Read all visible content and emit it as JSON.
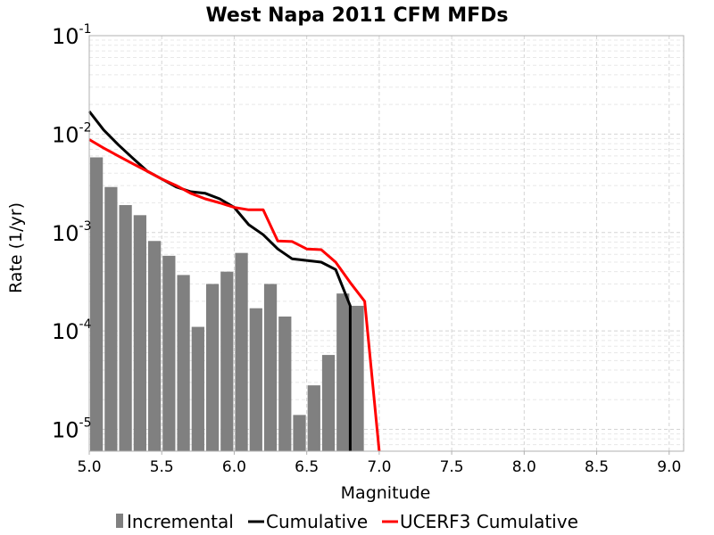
{
  "chart_data": {
    "type": "bar",
    "title": "West Napa 2011 CFM MFDs",
    "xlabel": "Magnitude",
    "ylabel": "Rate (1/yr)",
    "xlim": [
      5.0,
      9.1
    ],
    "ylim": [
      6e-06,
      0.1
    ],
    "yscale": "log",
    "grid": true,
    "legend_position": "bottom",
    "x_ticks": [
      "5.0",
      "5.5",
      "6.0",
      "6.5",
      "7.0",
      "7.5",
      "8.0",
      "8.5",
      "9.0"
    ],
    "y_ticks": [
      {
        "base": "10",
        "exp": "-1"
      },
      {
        "base": "10",
        "exp": "-2"
      },
      {
        "base": "10",
        "exp": "-3"
      },
      {
        "base": "10",
        "exp": "-4"
      },
      {
        "base": "10",
        "exp": "-5"
      }
    ],
    "series": [
      {
        "name": "Incremental",
        "kind": "bar",
        "color": "#808080",
        "bin_width": 0.1,
        "x": [
          5.05,
          5.15,
          5.25,
          5.35,
          5.45,
          5.55,
          5.65,
          5.75,
          5.85,
          5.95,
          6.05,
          6.15,
          6.25,
          6.35,
          6.45,
          6.55,
          6.65,
          6.75,
          6.85
        ],
        "values": [
          0.0058,
          0.0029,
          0.0019,
          0.0015,
          0.00082,
          0.00058,
          0.00037,
          0.00011,
          0.0003,
          0.0004,
          0.00062,
          0.00017,
          0.0003,
          0.00014,
          1.4e-05,
          2.8e-05,
          5.7e-05,
          0.00024,
          0.00018
        ]
      },
      {
        "name": "Cumulative",
        "kind": "line",
        "color": "#000000",
        "x": [
          5.0,
          5.1,
          5.2,
          5.3,
          5.4,
          5.5,
          5.6,
          5.7,
          5.8,
          5.9,
          6.0,
          6.1,
          6.2,
          6.3,
          6.4,
          6.5,
          6.6,
          6.7,
          6.8,
          6.8
        ],
        "values": [
          0.017,
          0.011,
          0.0078,
          0.0057,
          0.0042,
          0.0035,
          0.0029,
          0.0026,
          0.0025,
          0.0022,
          0.0018,
          0.0012,
          0.00095,
          0.00068,
          0.00054,
          0.00052,
          0.0005,
          0.00042,
          0.00018,
          1e-06
        ]
      },
      {
        "name": "UCERF3 Cumulative",
        "kind": "line",
        "color": "#ff0000",
        "x": [
          5.0,
          5.1,
          5.2,
          5.3,
          5.4,
          5.5,
          5.6,
          5.7,
          5.8,
          5.9,
          6.0,
          6.1,
          6.2,
          6.3,
          6.4,
          6.5,
          6.6,
          6.7,
          6.8,
          6.9,
          7.0
        ],
        "values": [
          0.0088,
          0.0072,
          0.006,
          0.005,
          0.0042,
          0.0035,
          0.003,
          0.0025,
          0.0022,
          0.002,
          0.0018,
          0.0017,
          0.0017,
          0.00082,
          0.00081,
          0.00068,
          0.00067,
          0.0005,
          0.00031,
          0.0002,
          1e-06
        ]
      }
    ]
  }
}
